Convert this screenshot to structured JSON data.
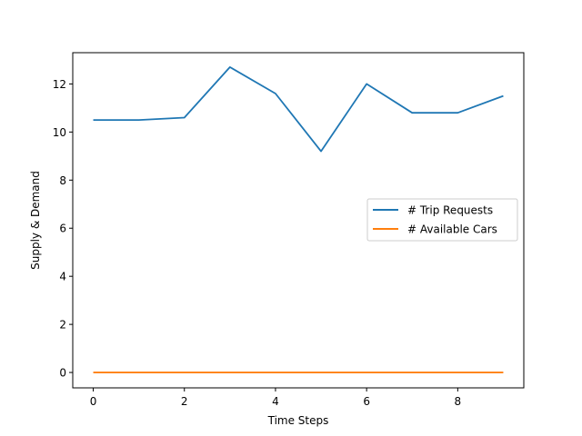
{
  "chart_data": {
    "type": "line",
    "xlabel": "Time Steps",
    "ylabel": "Supply & Demand",
    "xlim": [
      -0.45,
      9.45
    ],
    "ylim": [
      -0.64,
      13.3
    ],
    "xticks": [
      0,
      2,
      4,
      6,
      8
    ],
    "yticks": [
      0,
      2,
      4,
      6,
      8,
      10,
      12
    ],
    "grid": false,
    "legend_position": "center-right",
    "x": [
      0,
      1,
      2,
      3,
      4,
      5,
      6,
      7,
      8,
      9
    ],
    "series": [
      {
        "name": "# Trip Requests",
        "color": "#1f77b4",
        "values": [
          10.5,
          10.5,
          10.6,
          12.7,
          11.6,
          9.2,
          12.0,
          10.8,
          10.8,
          11.5
        ]
      },
      {
        "name": "# Available Cars",
        "color": "#ff7f0e",
        "values": [
          0,
          0,
          0,
          0,
          0,
          0,
          0,
          0,
          0,
          0
        ]
      }
    ]
  }
}
